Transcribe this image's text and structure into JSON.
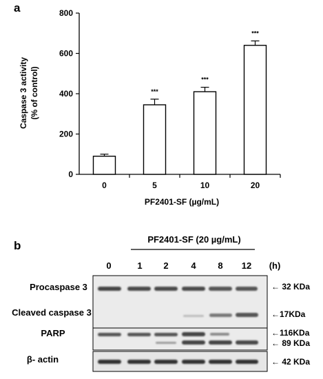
{
  "panel_a": {
    "letter": "a",
    "chart_data": {
      "type": "bar",
      "categories": [
        "0",
        "5",
        "10",
        "20"
      ],
      "values": [
        90,
        345,
        410,
        640
      ],
      "errors": [
        10,
        28,
        22,
        22
      ],
      "significance": [
        "",
        "***",
        "***",
        "***"
      ],
      "xlabel": "PF2401-SF (µg/mL)",
      "ylabel_line1": "Caspase 3 activity",
      "ylabel_line2": "(% of control)",
      "ylim": [
        0,
        800
      ],
      "yticks": [
        "0",
        "200",
        "400",
        "600",
        "800"
      ],
      "grid": false,
      "bar_color": "#ffffff"
    }
  },
  "panel_b": {
    "letter": "b",
    "treatment_label": "PF2401-SF (20 µg/mL)",
    "timepoints": [
      "0",
      "1",
      "2",
      "4",
      "8",
      "12"
    ],
    "time_unit": "(h)",
    "rows": [
      {
        "label": "Procaspase 3",
        "markers": [
          "← 32 KDa"
        ]
      },
      {
        "label": "Cleaved caspase 3",
        "markers": [
          "←17KDa"
        ]
      },
      {
        "label": "PARP",
        "markers": [
          "←116KDa",
          "← 89 KDa"
        ]
      },
      {
        "label": "β- actin",
        "markers": [
          "← 42 KDa"
        ]
      }
    ]
  }
}
